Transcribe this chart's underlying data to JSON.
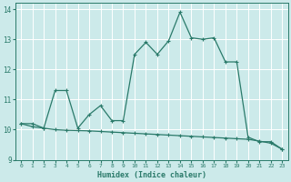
{
  "title": "",
  "xlabel": "Humidex (Indice chaleur)",
  "bg_color": "#cceaea",
  "line_color": "#2a7a6a",
  "grid_color": "#ffffff",
  "xlim": [
    -0.5,
    23.5
  ],
  "ylim": [
    9.0,
    14.2
  ],
  "yticks": [
    9,
    10,
    11,
    12,
    13,
    14
  ],
  "xticks": [
    0,
    1,
    2,
    3,
    4,
    5,
    6,
    7,
    8,
    9,
    10,
    11,
    12,
    13,
    14,
    15,
    16,
    17,
    18,
    19,
    20,
    21,
    22,
    23
  ],
  "line1_x": [
    0,
    1,
    2,
    3,
    4,
    5,
    6,
    7,
    8,
    9,
    10,
    11,
    12,
    13,
    14,
    15,
    16,
    17,
    18,
    19,
    20,
    21,
    22,
    23
  ],
  "line1_y": [
    10.2,
    10.2,
    10.05,
    11.3,
    11.3,
    10.05,
    10.5,
    10.8,
    10.3,
    10.3,
    12.5,
    12.9,
    12.5,
    12.95,
    13.9,
    13.05,
    13.0,
    13.05,
    12.25,
    12.25,
    9.75,
    9.6,
    9.6,
    9.35
  ],
  "line2_x": [
    0,
    1,
    2,
    3,
    4,
    5,
    6,
    7,
    8,
    9,
    10,
    11,
    12,
    13,
    14,
    15,
    16,
    17,
    18,
    19,
    20,
    21,
    22,
    23
  ],
  "line2_y": [
    10.2,
    10.1,
    10.05,
    10.0,
    9.98,
    9.97,
    9.96,
    9.94,
    9.92,
    9.9,
    9.88,
    9.86,
    9.84,
    9.82,
    9.8,
    9.78,
    9.76,
    9.74,
    9.72,
    9.7,
    9.68,
    9.62,
    9.55,
    9.35
  ]
}
